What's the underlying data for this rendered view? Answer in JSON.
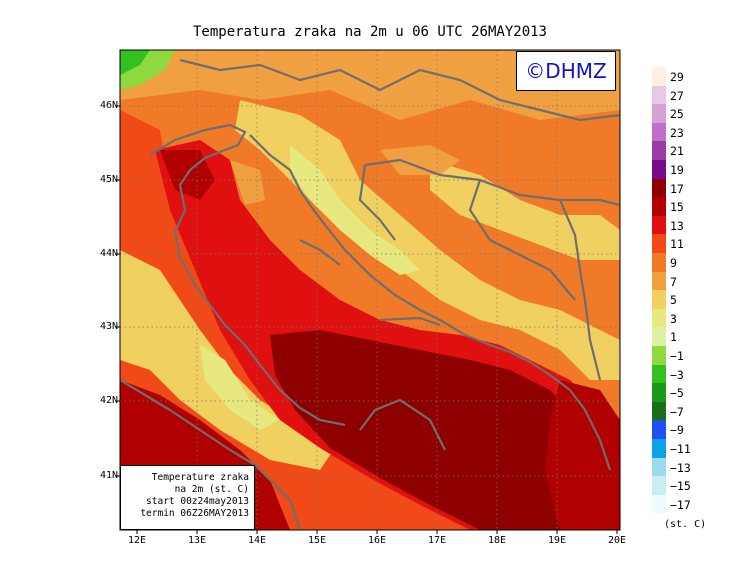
{
  "title": "Temperatura zraka na 2m u 06 UTC 26MAY2013",
  "logo_text": "©DHMZ",
  "info_box": {
    "line1": "Temperature zraka",
    "line2": "na 2m (st. C)",
    "line3": "start 00z24may2013",
    "line4": "termin 06Z26MAY2013"
  },
  "axes": {
    "x_ticks": [
      "12E",
      "13E",
      "14E",
      "15E",
      "16E",
      "17E",
      "18E",
      "19E",
      "20E"
    ],
    "y_ticks": [
      "46N",
      "45N",
      "44N",
      "43N",
      "42N",
      "41N"
    ]
  },
  "colorbar": {
    "unit": "(st. C)",
    "labels": [
      "29",
      "27",
      "25",
      "23",
      "21",
      "19",
      "17",
      "15",
      "13",
      "11",
      "9",
      "7",
      "5",
      "3",
      "1",
      "−1",
      "−3",
      "−5",
      "−7",
      "−9",
      "−11",
      "−13",
      "−15",
      "−17"
    ],
    "colors": [
      "#fdf0e0",
      "#e6c8e6",
      "#d4a3d4",
      "#c070c8",
      "#9a3ba6",
      "#7a0a8c",
      "#8e0000",
      "#b00000",
      "#e01010",
      "#f04a18",
      "#f07a28",
      "#f0a040",
      "#f0d060",
      "#e8e880",
      "#dff0a0",
      "#8ed840",
      "#33c020",
      "#1a9a1a",
      "#1a6e1a",
      "#2050f0",
      "#10a0e8",
      "#9adcec",
      "#c8eef4",
      "#eefafc"
    ]
  },
  "colors": {
    "land_warm": "#f07a28",
    "sea_warm": "#e01010",
    "sea_hot": "#8e0000",
    "mountain": "#f0d060",
    "coast_line": "#6e6e6e"
  }
}
